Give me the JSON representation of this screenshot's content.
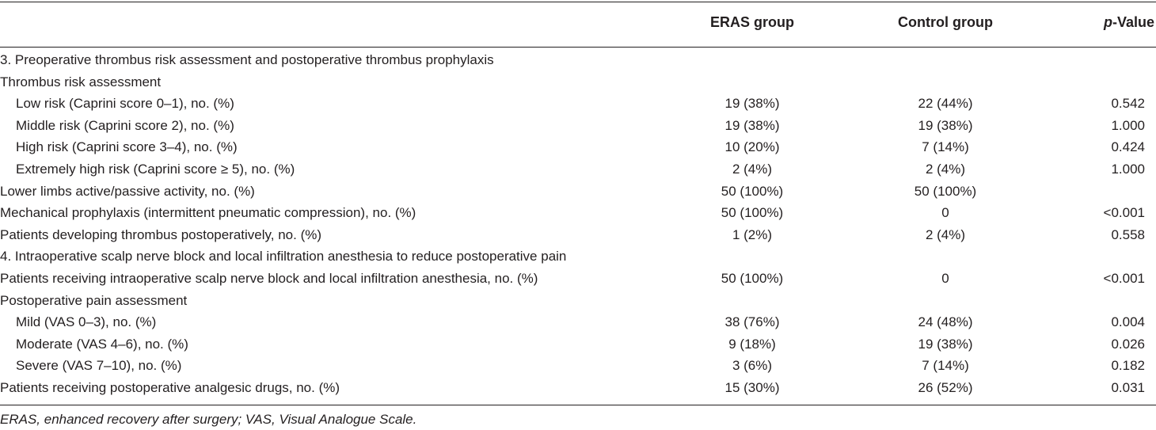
{
  "table": {
    "header": {
      "eras": "ERAS group",
      "control": "Control group",
      "p_italic": "p",
      "p_rest": "-Value"
    },
    "rows": [
      {
        "label": "3. Preoperative thrombus risk assessment and postoperative thrombus prophylaxis",
        "indent": false,
        "eras": "",
        "control": "",
        "p": ""
      },
      {
        "label": "Thrombus risk assessment",
        "indent": false,
        "eras": "",
        "control": "",
        "p": ""
      },
      {
        "label": "Low risk (Caprini score 0–1), no. (%)",
        "indent": true,
        "eras": "19 (38%)",
        "control": "22 (44%)",
        "p": "0.542"
      },
      {
        "label": "Middle risk (Caprini score 2), no. (%)",
        "indent": true,
        "eras": "19 (38%)",
        "control": "19 (38%)",
        "p": "1.000"
      },
      {
        "label": "High risk (Caprini score 3–4), no. (%)",
        "indent": true,
        "eras": "10 (20%)",
        "control": "7 (14%)",
        "p": "0.424"
      },
      {
        "label": "Extremely high risk (Caprini score ≥ 5), no. (%)",
        "indent": true,
        "eras": "2 (4%)",
        "control": "2 (4%)",
        "p": "1.000"
      },
      {
        "label": "Lower limbs active/passive activity, no. (%)",
        "indent": false,
        "eras": "50 (100%)",
        "control": "50 (100%)",
        "p": ""
      },
      {
        "label": "Mechanical prophylaxis (intermittent pneumatic compression), no. (%)",
        "indent": false,
        "eras": "50 (100%)",
        "control": "0",
        "p": "<0.001"
      },
      {
        "label": "Patients developing thrombus postoperatively, no. (%)",
        "indent": false,
        "eras": "1 (2%)",
        "control": "2 (4%)",
        "p": "0.558"
      },
      {
        "label": "4. Intraoperative scalp nerve block and local infiltration anesthesia to reduce postoperative pain",
        "indent": false,
        "eras": "",
        "control": "",
        "p": ""
      },
      {
        "label": "Patients receiving intraoperative scalp nerve block and local infiltration anesthesia, no. (%)",
        "indent": false,
        "eras": "50 (100%)",
        "control": "0",
        "p": "<0.001"
      },
      {
        "label": "Postoperative pain assessment",
        "indent": false,
        "eras": "",
        "control": "",
        "p": ""
      },
      {
        "label": "Mild (VAS 0–3), no. (%)",
        "indent": true,
        "eras": "38 (76%)",
        "control": "24 (48%)",
        "p": "0.004"
      },
      {
        "label": "Moderate (VAS 4–6), no. (%)",
        "indent": true,
        "eras": "9 (18%)",
        "control": "19 (38%)",
        "p": "0.026"
      },
      {
        "label": "Severe (VAS 7–10), no. (%)",
        "indent": true,
        "eras": "3 (6%)",
        "control": "7 (14%)",
        "p": "0.182"
      },
      {
        "label": "Patients receiving postoperative analgesic drugs, no. (%)",
        "indent": false,
        "eras": "15 (30%)",
        "control": "26 (52%)",
        "p": "0.031"
      }
    ],
    "footnote": "ERAS, enhanced recovery after surgery; VAS, Visual Analogue Scale."
  }
}
